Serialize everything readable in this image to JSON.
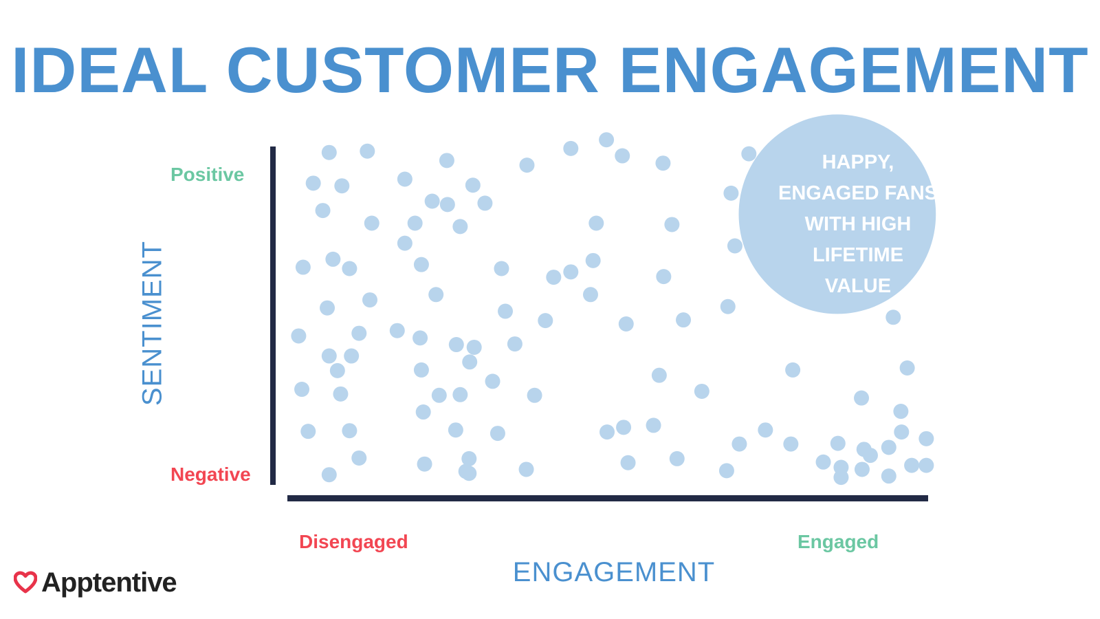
{
  "title": "IDEAL CUSTOMER ENGAGEMENT",
  "colors": {
    "title": "#4a90cf",
    "positive": "#6bc7a2",
    "negative": "#f24652",
    "dot": "#b8d4ec",
    "axis": "#222a45",
    "logo_heart": "#e8334a"
  },
  "chart_data": {
    "type": "scatter",
    "title": "IDEAL CUSTOMER ENGAGEMENT",
    "xlabel": "ENGAGEMENT",
    "ylabel": "SENTIMENT",
    "x_low_label": "Disengaged",
    "x_high_label": "Engaged",
    "y_high_label": "Positive",
    "y_low_label": "Negative",
    "xlim": [
      0,
      100
    ],
    "ylim": [
      0,
      100
    ],
    "grid": false,
    "legend": "none",
    "callout": {
      "lines": [
        "HAPPY,",
        "ENGAGED FANS",
        "WITH HIGH",
        "LIFETIME",
        "VALUE"
      ],
      "center": [
        85.5,
        79.5
      ],
      "radius_x": 15.5
    },
    "points": [
      [
        5.6,
        98
      ],
      [
        11.6,
        98.4
      ],
      [
        24.1,
        95.6
      ],
      [
        36.7,
        94.2
      ],
      [
        43.6,
        99.2
      ],
      [
        49.2,
        101.8
      ],
      [
        51.7,
        97
      ],
      [
        58.1,
        94.8
      ],
      [
        71.6,
        97.6
      ],
      [
        3.1,
        88.8
      ],
      [
        7.6,
        88
      ],
      [
        17.5,
        90
      ],
      [
        28.2,
        88.2
      ],
      [
        21.8,
        83.4
      ],
      [
        30.1,
        82.8
      ],
      [
        24.2,
        82.4
      ],
      [
        4.6,
        80.6
      ],
      [
        12.3,
        76.8
      ],
      [
        19.1,
        76.8
      ],
      [
        26.2,
        75.8
      ],
      [
        47.6,
        76.8
      ],
      [
        59.5,
        76.4
      ],
      [
        68.8,
        85.8
      ],
      [
        69.4,
        70
      ],
      [
        1.5,
        63.6
      ],
      [
        6.2,
        66
      ],
      [
        8.8,
        63.2
      ],
      [
        17.5,
        70.8
      ],
      [
        20.1,
        64.4
      ],
      [
        32.7,
        63.2
      ],
      [
        40.9,
        60.6
      ],
      [
        43.6,
        62.2
      ],
      [
        47.1,
        65.6
      ],
      [
        58.2,
        60.8
      ],
      [
        12.0,
        53.8
      ],
      [
        22.4,
        55.4
      ],
      [
        46.7,
        55.4
      ],
      [
        5.3,
        51.4
      ],
      [
        33.3,
        50.4
      ],
      [
        39.6,
        47.6
      ],
      [
        52.3,
        46.6
      ],
      [
        61.3,
        47.8
      ],
      [
        68.3,
        51.8
      ],
      [
        94.3,
        48.6
      ],
      [
        0.8,
        43
      ],
      [
        10.3,
        43.8
      ],
      [
        16.3,
        44.6
      ],
      [
        19.9,
        42.4
      ],
      [
        25.6,
        40.4
      ],
      [
        28.4,
        39.6
      ],
      [
        34.8,
        40.6
      ],
      [
        5.6,
        37
      ],
      [
        9.1,
        37
      ],
      [
        27.7,
        35.2
      ],
      [
        6.9,
        32.6
      ],
      [
        20.1,
        32.8
      ],
      [
        31.3,
        29.4
      ],
      [
        57.5,
        31.2
      ],
      [
        78.5,
        32.8
      ],
      [
        96.5,
        33.4
      ],
      [
        1.3,
        27
      ],
      [
        7.4,
        25.6
      ],
      [
        22.9,
        25.2
      ],
      [
        26.2,
        25.4
      ],
      [
        37.9,
        25.2
      ],
      [
        64.2,
        26.4
      ],
      [
        20.4,
        20.2
      ],
      [
        89.3,
        24.4
      ],
      [
        95.5,
        20.4
      ],
      [
        25.5,
        14.8
      ],
      [
        51.9,
        15.6
      ],
      [
        56.6,
        16.2
      ],
      [
        2.3,
        14.4
      ],
      [
        8.8,
        14.6
      ],
      [
        32.1,
        13.8
      ],
      [
        49.3,
        14.2
      ],
      [
        74.2,
        14.8
      ],
      [
        95.6,
        14.2
      ],
      [
        99.5,
        12.2
      ],
      [
        70.1,
        10.6
      ],
      [
        78.2,
        10.6
      ],
      [
        85.6,
        10.8
      ],
      [
        89.7,
        9
      ],
      [
        90.7,
        7.2
      ],
      [
        93.6,
        9.6
      ],
      [
        10.3,
        6.4
      ],
      [
        27.6,
        6.2
      ],
      [
        60.3,
        6.2
      ],
      [
        52.6,
        5
      ],
      [
        83.3,
        5.2
      ],
      [
        86.1,
        3.6
      ],
      [
        97.2,
        4.2
      ],
      [
        99.5,
        4.2
      ],
      [
        89.4,
        3
      ],
      [
        20.6,
        4.6
      ],
      [
        27.1,
        2.4
      ],
      [
        36.6,
        3
      ],
      [
        68.1,
        2.6
      ],
      [
        5.6,
        1.4
      ],
      [
        27.6,
        1.8
      ],
      [
        86.1,
        0.6
      ],
      [
        93.6,
        1
      ]
    ]
  },
  "logo": {
    "text": "Apptentive",
    "icon": "heart-icon"
  }
}
